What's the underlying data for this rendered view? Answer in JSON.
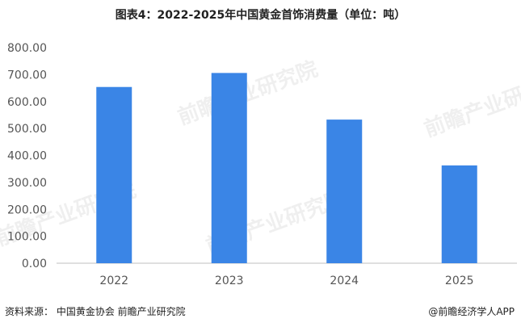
{
  "chart_data": {
    "type": "bar",
    "title": "图表4：2022-2025年中国黄金首饰消费量（单位：吨）",
    "categories": [
      "2022",
      "2023",
      "2024",
      "2025"
    ],
    "values": [
      654,
      706,
      533,
      363
    ],
    "ylim": [
      0,
      800
    ],
    "yticks": [
      0,
      100,
      200,
      300,
      400,
      500,
      600,
      700,
      800
    ],
    "ytick_labels": [
      "0.00",
      "100.00",
      "200.00",
      "300.00",
      "400.00",
      "500.00",
      "600.00",
      "700.00",
      "800.00"
    ],
    "grid": false,
    "bar_color": "#3a85e6"
  },
  "footer": {
    "source": "资料来源：  中国黄金协会   前瞻产业研究院",
    "brand": "@前瞻经济学人APP"
  },
  "watermark": "前瞻产业研究院"
}
